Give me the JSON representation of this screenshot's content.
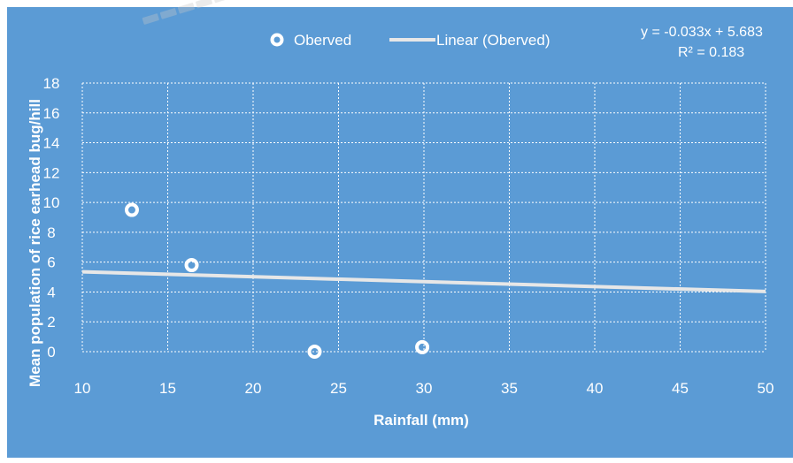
{
  "chart_data": {
    "type": "scatter",
    "title": "",
    "xlabel": "Rainfall (mm)",
    "ylabel": "Mean population of rice earhead bug/hill",
    "xlim": [
      10,
      50
    ],
    "ylim": [
      0,
      18
    ],
    "x_ticks": [
      10,
      15,
      20,
      25,
      30,
      35,
      40,
      45,
      50
    ],
    "y_ticks": [
      0,
      2,
      4,
      6,
      8,
      10,
      12,
      14,
      16,
      18
    ],
    "grid": true,
    "legend_position": "top",
    "series": [
      {
        "name": "Oberved",
        "x": [
          12.9,
          16.4,
          23.6,
          29.9
        ],
        "y": [
          9.5,
          5.8,
          0.0,
          0.3
        ],
        "marker": "hollow-circle",
        "color": "#ffffff"
      }
    ],
    "trendline": {
      "name": "Linear (Oberved)",
      "slope": -0.033,
      "intercept": 5.683,
      "equation": "y = -0.033x + 5.683",
      "r_squared": "R² = 0.183",
      "color": "#e7e7e7"
    },
    "background_color": "#5b9bd5",
    "grid_color": "#ffffff",
    "text_color": "#ffffff"
  }
}
